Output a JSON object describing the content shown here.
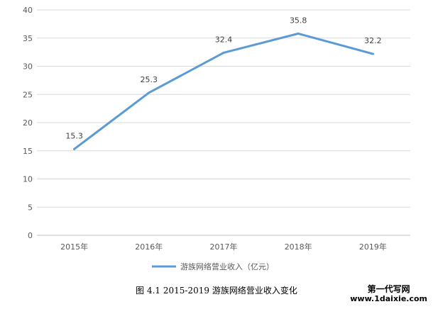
{
  "chart_data": {
    "type": "line",
    "categories": [
      "2015年",
      "2016年",
      "2017年",
      "2018年",
      "2019年"
    ],
    "series": [
      {
        "name": "游族网络营业收入（亿元）",
        "values": [
          15.3,
          25.3,
          32.4,
          35.8,
          32.2
        ]
      }
    ],
    "data_labels": [
      "15.3",
      "25.3",
      "32.4",
      "35.8",
      "32.2"
    ],
    "ylim": [
      0,
      40
    ],
    "yticks": [
      "0",
      "5",
      "10",
      "15",
      "20",
      "25",
      "30",
      "35",
      "40"
    ],
    "grid": true,
    "legend_position": "bottom",
    "line_color": "#5b9bd5"
  },
  "caption": "图 4.1  2015-2019 游族网络营业收入变化",
  "watermark": {
    "title": "第一代写网",
    "url": "www.1daixie.com"
  }
}
